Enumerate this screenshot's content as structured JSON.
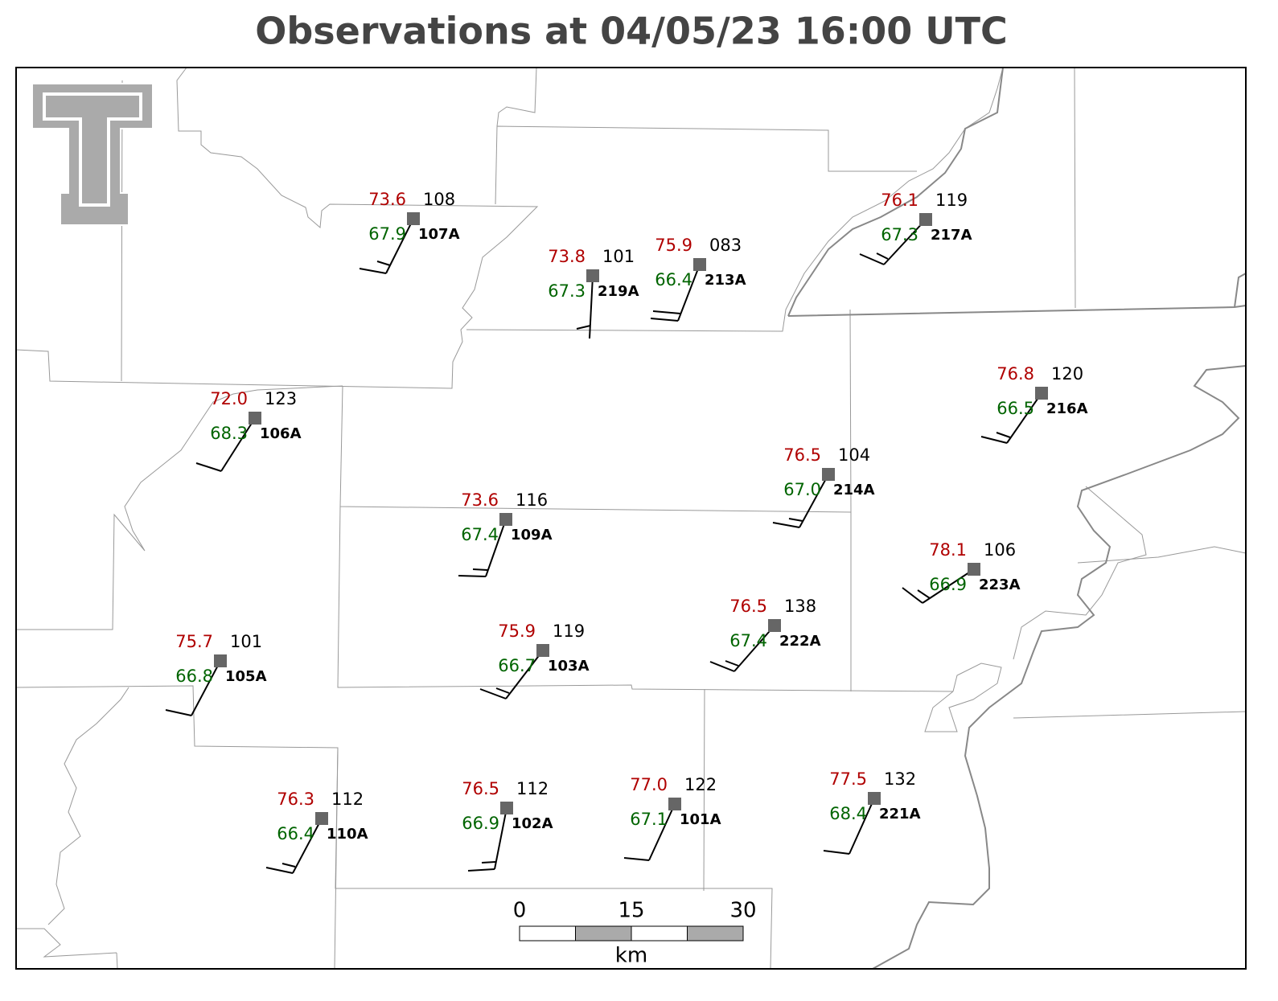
{
  "title": "Observations at 04/05/23 16:00 UTC",
  "stations": [
    {
      "id": "107A",
      "temperature": "73.6",
      "dewpoint": "67.9",
      "pressure": "108"
    },
    {
      "id": "219A",
      "temperature": "73.8",
      "dewpoint": "67.3",
      "pressure": "101"
    },
    {
      "id": "213A",
      "temperature": "75.9",
      "dewpoint": "66.4",
      "pressure": "083"
    },
    {
      "id": "217A",
      "temperature": "76.1",
      "dewpoint": "67.3",
      "pressure": "119"
    },
    {
      "id": "106A",
      "temperature": "72.0",
      "dewpoint": "68.3",
      "pressure": "123"
    },
    {
      "id": "216A",
      "temperature": "76.8",
      "dewpoint": "66.5",
      "pressure": "120"
    },
    {
      "id": "214A",
      "temperature": "76.5",
      "dewpoint": "67.0",
      "pressure": "104"
    },
    {
      "id": "109A",
      "temperature": "73.6",
      "dewpoint": "67.4",
      "pressure": "116"
    },
    {
      "id": "223A",
      "temperature": "78.1",
      "dewpoint": "66.9",
      "pressure": "106"
    },
    {
      "id": "222A",
      "temperature": "76.5",
      "dewpoint": "67.4",
      "pressure": "138"
    },
    {
      "id": "105A",
      "temperature": "75.7",
      "dewpoint": "66.8",
      "pressure": "101"
    },
    {
      "id": "103A",
      "temperature": "75.9",
      "dewpoint": "66.7",
      "pressure": "119"
    },
    {
      "id": "110A",
      "temperature": "76.3",
      "dewpoint": "66.4",
      "pressure": "112"
    },
    {
      "id": "102A",
      "temperature": "76.5",
      "dewpoint": "66.9",
      "pressure": "112"
    },
    {
      "id": "101A",
      "temperature": "77.0",
      "dewpoint": "67.1",
      "pressure": "122"
    },
    {
      "id": "221A",
      "temperature": "77.5",
      "dewpoint": "68.4",
      "pressure": "132"
    }
  ],
  "scale_bar": {
    "labels": [
      "0",
      "15",
      "30"
    ],
    "unit": "km"
  }
}
